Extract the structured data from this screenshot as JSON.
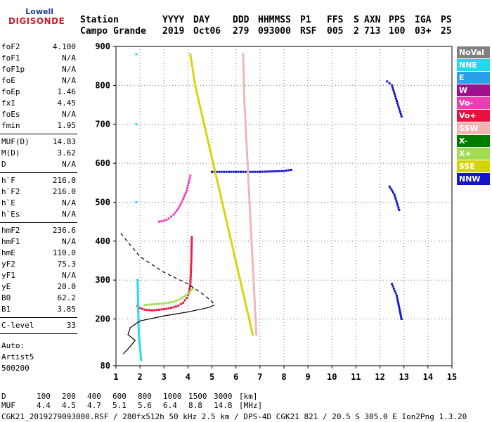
{
  "logo": {
    "line1": "Lowell",
    "line2": "DIGISONDE"
  },
  "header": {
    "labels_row": [
      "Station",
      "YYYY",
      "DAY",
      "DDD",
      "HHMMSS",
      "P1",
      "FFS",
      "S",
      "AXN",
      "PPS",
      "IGA",
      "PS"
    ],
    "values_row": [
      "Campo Grande",
      "2019",
      "Oct06",
      "279",
      "093000",
      "RSF",
      "005",
      "2",
      "713",
      "100",
      "03+",
      "25"
    ]
  },
  "params": {
    "group1": [
      {
        "name": "foF2",
        "value": "4.100"
      },
      {
        "name": "foF1",
        "value": "N/A"
      },
      {
        "name": "foF1p",
        "value": "N/A"
      },
      {
        "name": "foE",
        "value": "N/A"
      },
      {
        "name": "foEp",
        "value": "1.46"
      },
      {
        "name": "fxI",
        "value": "4.45"
      },
      {
        "name": "foEs",
        "value": "N/A"
      },
      {
        "name": "fmin",
        "value": "1.95"
      }
    ],
    "group2": [
      {
        "name": "MUF(D)",
        "value": "14.83"
      },
      {
        "name": "M(D)",
        "value": "3.62"
      },
      {
        "name": "D",
        "value": "N/A"
      }
    ],
    "group3": [
      {
        "name": "h`F",
        "value": "216.0"
      },
      {
        "name": "h`F2",
        "value": "216.0"
      },
      {
        "name": "h`E",
        "value": "N/A"
      },
      {
        "name": "h`Es",
        "value": "N/A"
      }
    ],
    "group4": [
      {
        "name": "hmF2",
        "value": "236.6"
      },
      {
        "name": "hmF1",
        "value": "N/A"
      },
      {
        "name": "hmE",
        "value": "110.0"
      },
      {
        "name": "yF2",
        "value": "75.3"
      },
      {
        "name": "yF1",
        "value": "N/A"
      },
      {
        "name": "yE",
        "value": "20.0"
      },
      {
        "name": "B0",
        "value": "62.2"
      },
      {
        "name": "B1",
        "value": "3.85"
      }
    ],
    "group5": [
      {
        "name": "C-level",
        "value": "33"
      }
    ],
    "auto_label": "Auto:",
    "auto_system": "Artist5",
    "auto_code": "500200"
  },
  "legend": [
    {
      "label": "NoVal",
      "color": "#808080"
    },
    {
      "label": "NNE",
      "color": "#22d8ec"
    },
    {
      "label": "E",
      "color": "#2aa0e8"
    },
    {
      "label": "W",
      "color": "#a0108c"
    },
    {
      "label": "Vo-",
      "color": "#f03cb4"
    },
    {
      "label": "Vo+",
      "color": "#e8103c"
    },
    {
      "label": "SSW",
      "color": "#f0b4b4"
    },
    {
      "label": "X-",
      "color": "#007c00"
    },
    {
      "label": "X+",
      "color": "#a0dc50"
    },
    {
      "label": "SSE",
      "color": "#d4d400"
    },
    {
      "label": "NNW",
      "color": "#1414c8"
    }
  ],
  "muf_table": {
    "d_label": "D",
    "d_values": [
      "100",
      "200",
      "400",
      "600",
      "800",
      "1000",
      "1500",
      "3000"
    ],
    "d_unit": "[km]",
    "muf_label": "MUF",
    "muf_values": [
      "4.4",
      "4.5",
      "4.7",
      "5.1",
      "5.6",
      "6.4",
      "8.8",
      "14.8"
    ],
    "muf_unit": "[MHz]"
  },
  "footer": "CGK21_2019279093000.RSF / 280fx512h 50 kHz 2.5 km / DPS-4D CGK21 821 / 20.5 S 305.0 E Ion2Png 1.3.20",
  "chart_data": {
    "type": "scatter",
    "title": "",
    "xlabel": "",
    "ylabel": "",
    "xlim": [
      1,
      15
    ],
    "ylim": [
      80,
      900
    ],
    "xticks": [
      1,
      2,
      3,
      4,
      5,
      6,
      7,
      8,
      9,
      10,
      11,
      12,
      13,
      14,
      15
    ],
    "yticks": [
      80,
      200,
      300,
      400,
      500,
      600,
      700,
      800,
      900
    ],
    "grid": "dotted",
    "series": [
      {
        "name": "Vo+",
        "color": "#e8103c",
        "points": [
          [
            1.9,
            233
          ],
          [
            2.0,
            228
          ],
          [
            2.2,
            224
          ],
          [
            2.5,
            222
          ],
          [
            2.8,
            224
          ],
          [
            3.1,
            226
          ],
          [
            3.4,
            230
          ],
          [
            3.6,
            234
          ],
          [
            3.8,
            242
          ],
          [
            3.95,
            254
          ],
          [
            4.05,
            268
          ],
          [
            4.1,
            290
          ],
          [
            4.12,
            320
          ],
          [
            4.14,
            350
          ],
          [
            4.15,
            380
          ],
          [
            4.16,
            410
          ]
        ]
      },
      {
        "name": "Vo-",
        "color": "#f03cb4",
        "points": [
          [
            2.8,
            450
          ],
          [
            3.0,
            452
          ],
          [
            3.2,
            458
          ],
          [
            3.4,
            468
          ],
          [
            3.6,
            484
          ],
          [
            3.8,
            508
          ],
          [
            3.95,
            530
          ],
          [
            4.05,
            555
          ],
          [
            4.1,
            568
          ]
        ]
      },
      {
        "name": "X+",
        "color": "#a0dc50",
        "points": [
          [
            2.2,
            236
          ],
          [
            2.6,
            238
          ],
          [
            3.0,
            240
          ],
          [
            3.4,
            244
          ],
          [
            3.7,
            252
          ],
          [
            3.95,
            262
          ],
          [
            4.2,
            278
          ]
        ]
      },
      {
        "name": "NNW",
        "color": "#1414c8",
        "points": [
          [
            5.0,
            578
          ],
          [
            5.5,
            578
          ],
          [
            6.0,
            578
          ],
          [
            6.5,
            578
          ],
          [
            7.0,
            578
          ],
          [
            7.5,
            579
          ],
          [
            8.0,
            580
          ],
          [
            8.3,
            583
          ],
          [
            12.3,
            810
          ],
          [
            12.5,
            800
          ],
          [
            12.7,
            760
          ],
          [
            12.9,
            720
          ],
          [
            12.4,
            540
          ],
          [
            12.6,
            520
          ],
          [
            12.8,
            480
          ],
          [
            12.5,
            290
          ],
          [
            12.7,
            260
          ],
          [
            12.9,
            200
          ]
        ]
      },
      {
        "name": "SSE",
        "color": "#d4d400",
        "points": [
          [
            4.1,
            880
          ],
          [
            4.3,
            800
          ],
          [
            4.6,
            720
          ],
          [
            4.9,
            640
          ],
          [
            5.2,
            560
          ],
          [
            5.5,
            480
          ],
          [
            5.8,
            400
          ],
          [
            6.1,
            320
          ],
          [
            6.4,
            240
          ],
          [
            6.7,
            160
          ]
        ]
      },
      {
        "name": "NNE",
        "color": "#22d8ec",
        "points": [
          [
            1.85,
            880
          ],
          [
            1.85,
            700
          ],
          [
            1.85,
            500
          ],
          [
            1.9,
            300
          ],
          [
            1.95,
            160
          ],
          [
            2.05,
            95
          ]
        ]
      },
      {
        "name": "SSW",
        "color": "#f0b4b4",
        "points": [
          [
            6.3,
            880
          ],
          [
            6.35,
            760
          ],
          [
            6.45,
            640
          ],
          [
            6.55,
            520
          ],
          [
            6.65,
            400
          ],
          [
            6.75,
            280
          ],
          [
            6.85,
            160
          ]
        ]
      }
    ],
    "profile": {
      "name": "electron density profile",
      "points": [
        [
          0.2,
          420
        ],
        [
          1.0,
          360
        ],
        [
          2.0,
          320
        ],
        [
          3.0,
          290
        ],
        [
          3.6,
          265
        ],
        [
          4.0,
          245
        ],
        [
          4.1,
          236
        ],
        [
          3.9,
          230
        ],
        [
          3.0,
          218
        ],
        [
          2.0,
          208
        ],
        [
          1.0,
          195
        ],
        [
          0.6,
          178
        ],
        [
          0.5,
          160
        ],
        [
          0.8,
          145
        ],
        [
          0.6,
          130
        ],
        [
          0.3,
          110
        ]
      ]
    }
  }
}
